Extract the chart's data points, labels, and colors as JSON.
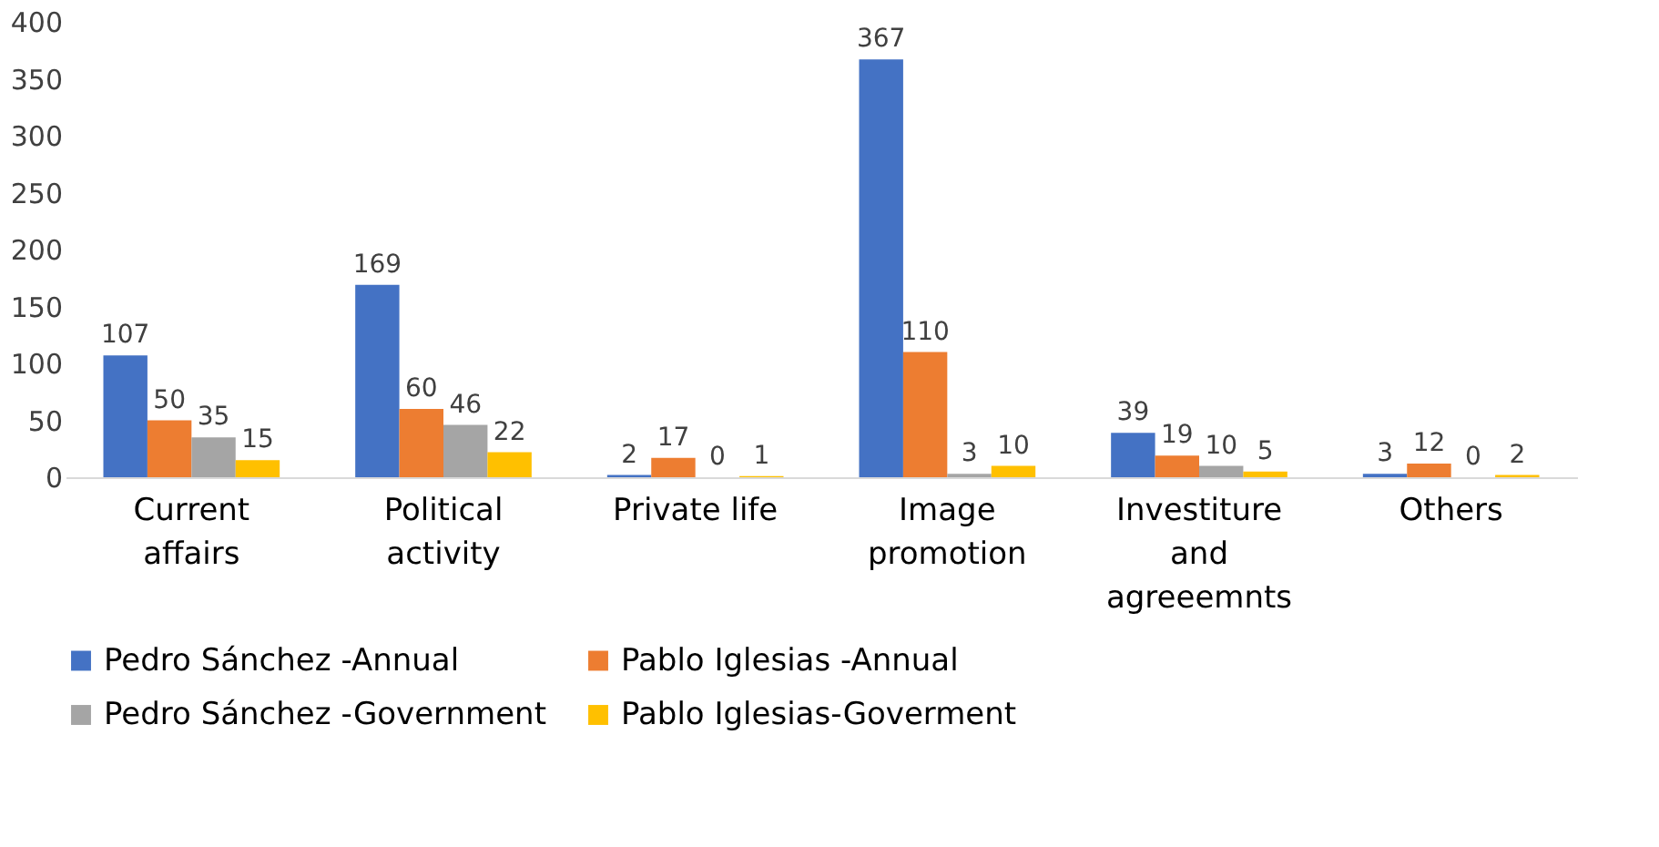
{
  "chart_data": {
    "type": "bar",
    "categories": [
      "Current affairs",
      "Political activity",
      "Private life",
      "Image promotion",
      "Investiture and agreeemnts",
      "Others"
    ],
    "series": [
      {
        "name": "Pedro Sánchez -Annual",
        "color": "#4472c4",
        "values": [
          107,
          169,
          2,
          367,
          39,
          3
        ]
      },
      {
        "name": "Pablo Iglesias -Annual",
        "color": "#ed7d31",
        "values": [
          50,
          60,
          17,
          110,
          19,
          12
        ]
      },
      {
        "name": "Pedro Sánchez -Government",
        "color": "#a5a5a5",
        "values": [
          35,
          46,
          0,
          3,
          10,
          0
        ]
      },
      {
        "name": "Pablo Iglesias-Goverment",
        "color": "#ffc000",
        "values": [
          15,
          22,
          1,
          10,
          5,
          2
        ]
      }
    ],
    "ylim": [
      0,
      400
    ],
    "yticks": [
      0,
      50,
      100,
      150,
      200,
      250,
      300,
      350,
      400
    ],
    "grid": false,
    "legend": "bottom",
    "data_labels": true
  }
}
